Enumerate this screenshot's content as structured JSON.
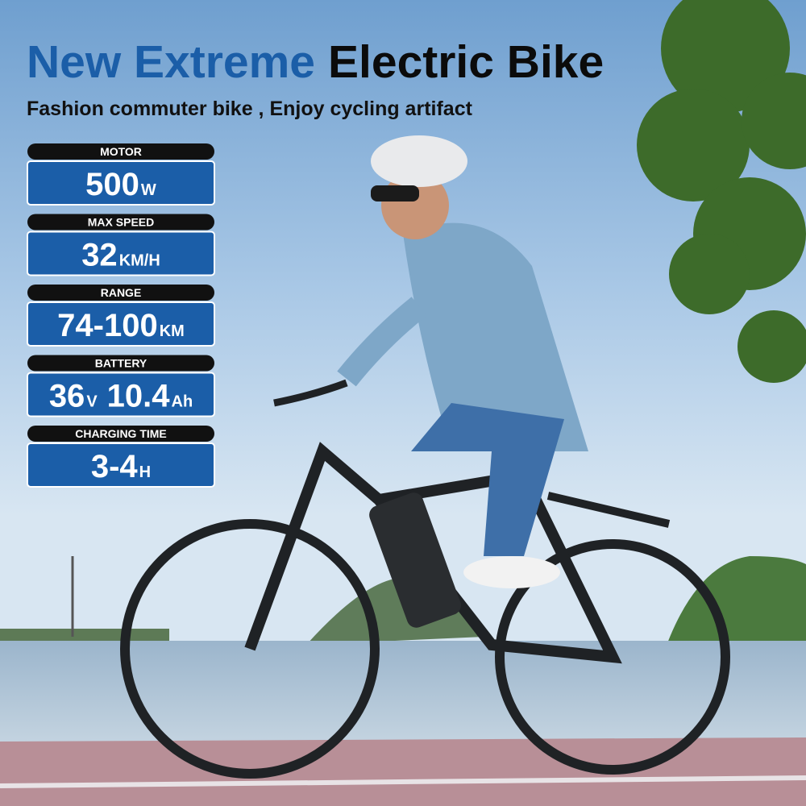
{
  "header": {
    "title": [
      "New Extreme",
      "Electric Bike"
    ],
    "subtitle": "Fashion commuter bike , Enjoy cycling artifact"
  },
  "specs": [
    {
      "label": "MOTOR",
      "value": [
        {
          "number": "500",
          "unit": "W"
        }
      ]
    },
    {
      "label": "MAX SPEED",
      "value": [
        {
          "number": "32",
          "unit": "KM/H"
        }
      ]
    },
    {
      "label": "RANGE",
      "value": [
        {
          "number": "74-100",
          "unit": "KM"
        }
      ]
    },
    {
      "label": "BATTERY",
      "value": [
        {
          "number": "36",
          "unit": "V"
        },
        {
          "number": "10.4",
          "unit": "Ah"
        }
      ]
    },
    {
      "label": "CHARGING TIME",
      "value": [
        {
          "number": "3-4",
          "unit": "H"
        }
      ]
    }
  ]
}
